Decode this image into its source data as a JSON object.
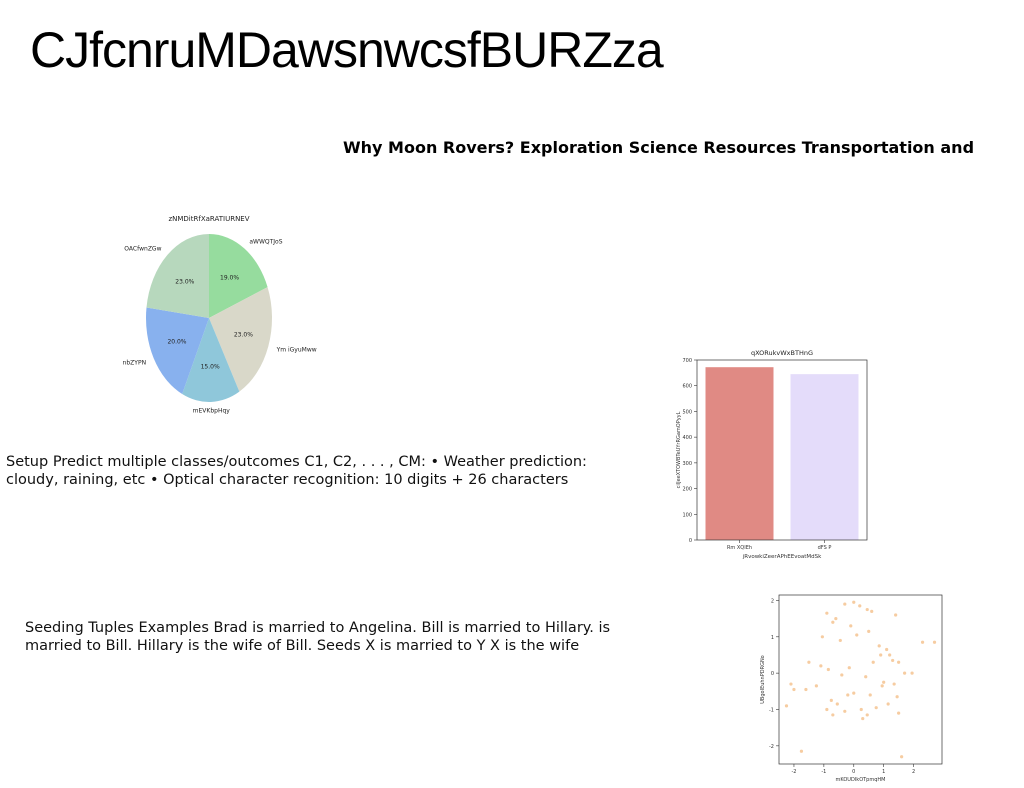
{
  "page": {
    "title": "CJfcnruMDawsnwcsfBURZza",
    "headline": "Why Moon Rovers? Exploration Science Resources Transportation and",
    "paragraph1": "Setup Predict multiple classes/outcomes C1, C2, . . . , CM: • Weather prediction: cloudy, raining, etc • Optical character recognition: 10 digits + 26 characters",
    "paragraph2": "Seeding Tuples Examples Brad is married to Angelina. Bill is married to Hillary. is married to Bill. Hillary is the wife of Bill. Seeds X is married to Y X is the wife"
  },
  "chart_data": [
    {
      "type": "pie",
      "title": "zNMDitRfXaRATIURNEV",
      "labels": [
        "aWWQTJoS",
        "Ym iGyuMww",
        "mEVKbpHqy",
        "nbZYPN",
        "OACfwnZGw"
      ],
      "values": [
        19.0,
        23.0,
        15.0,
        20.0,
        23.0
      ],
      "value_labels": [
        "19.0%",
        "23.0%",
        "15.0%",
        "20.0%",
        "23.0%"
      ],
      "colors": [
        "#96dc9e",
        "#d9d8c9",
        "#8fc7da",
        "#88b1ee",
        "#b7d8bd"
      ]
    },
    {
      "type": "bar",
      "title": "qXORukvWxBTHnG",
      "categories": [
        "Rm XQIEh",
        "dFS P"
      ],
      "values": [
        672,
        645
      ],
      "colors": [
        "#e08a84",
        "#e4dcfa"
      ],
      "xlabel": "jRvowkiZeerAPhEEvoatMdSk",
      "ylabel": "cilJeeXTOWBTeUYrRGamOPyyL",
      "ylim": [
        0,
        700
      ],
      "yticks": [
        0,
        100,
        200,
        300,
        400,
        500,
        600,
        700
      ]
    },
    {
      "type": "scatter",
      "xlabel": "mKOUDIkOTpmqHM",
      "ylabel": "UBgoIEuhnPDRGNo",
      "xlim": [
        -2.5,
        2.95
      ],
      "ylim": [
        -2.5,
        2.15
      ],
      "xticks": [
        -2,
        -1,
        0,
        1,
        2
      ],
      "yticks": [
        -2,
        -1,
        0,
        1,
        2
      ],
      "color": "#f5c391",
      "x": [
        -0.3,
        0.0,
        0.2,
        0.45,
        -0.9,
        -0.6,
        0.6,
        1.4,
        -0.1,
        0.5,
        0.1,
        -0.7,
        -1.05,
        -0.45,
        0.85,
        1.1,
        1.2,
        1.3,
        1.5,
        1.7,
        2.3,
        2.7,
        1.95,
        -1.5,
        -1.1,
        -0.85,
        -0.4,
        -0.15,
        0.65,
        0.9,
        1.35,
        1.0,
        -2.0,
        -2.25,
        -1.6,
        -1.25,
        -0.75,
        -0.55,
        -0.3,
        0.25,
        0.45,
        0.75,
        1.15,
        1.45,
        -0.9,
        -0.7,
        0.3,
        0.0,
        1.5,
        -1.75,
        -2.1,
        0.95,
        0.55,
        1.6,
        -0.2,
        0.4
      ],
      "y": [
        1.9,
        1.95,
        1.85,
        1.75,
        1.65,
        1.5,
        1.7,
        1.6,
        1.3,
        1.15,
        1.05,
        1.4,
        1.0,
        0.9,
        0.75,
        0.65,
        0.5,
        0.35,
        0.3,
        0.0,
        0.85,
        0.85,
        0.0,
        0.3,
        0.2,
        0.1,
        -0.05,
        0.15,
        0.3,
        0.5,
        -0.3,
        -0.25,
        -0.45,
        -0.9,
        -0.45,
        -0.35,
        -0.75,
        -0.85,
        -1.05,
        -1.0,
        -1.15,
        -0.95,
        -0.85,
        -0.65,
        -1.0,
        -1.15,
        -1.25,
        -0.55,
        -1.1,
        -2.15,
        -0.3,
        -0.35,
        -0.6,
        -2.3,
        -0.6,
        -0.1
      ]
    }
  ]
}
